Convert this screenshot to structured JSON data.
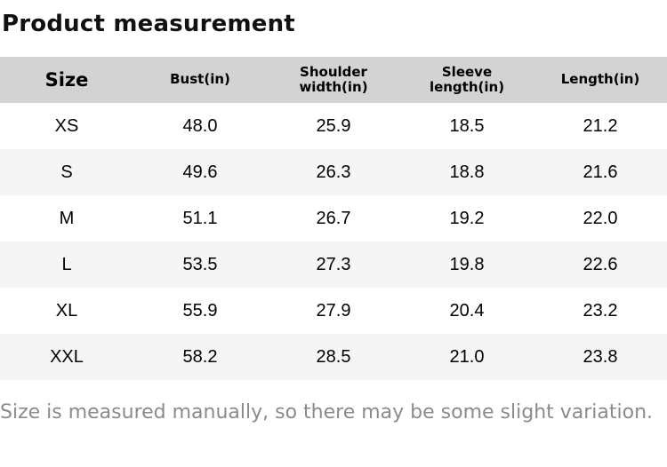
{
  "page": {
    "title": "Product measurement",
    "note": "Size is measured manually, so there may be some slight variation."
  },
  "colors": {
    "header_bg": "#d3d3d3",
    "row_alt_bg": "#f5f5f5",
    "text_color": "#111111",
    "note_color": "#8b8b8b",
    "page_bg": "#ffffff"
  },
  "table": {
    "headers": [
      "Size",
      "Bust(in)",
      "Shoulder width(in)",
      "Sleeve length(in)",
      "Length(in)"
    ],
    "rows": [
      {
        "size": "XS",
        "bust": "48.0",
        "shoulder_width": "25.9",
        "sleeve_length": "18.5",
        "length": "21.2"
      },
      {
        "size": "S",
        "bust": "49.6",
        "shoulder_width": "26.3",
        "sleeve_length": "18.8",
        "length": "21.6"
      },
      {
        "size": "M",
        "bust": "51.1",
        "shoulder_width": "26.7",
        "sleeve_length": "19.2",
        "length": "22.0"
      },
      {
        "size": "L",
        "bust": "53.5",
        "shoulder_width": "27.3",
        "sleeve_length": "19.8",
        "length": "22.6"
      },
      {
        "size": "XL",
        "bust": "55.9",
        "shoulder_width": "27.9",
        "sleeve_length": "20.4",
        "length": "23.2"
      },
      {
        "size": "XXL",
        "bust": "58.2",
        "shoulder_width": "28.5",
        "sleeve_length": "21.0",
        "length": "23.8"
      }
    ]
  }
}
